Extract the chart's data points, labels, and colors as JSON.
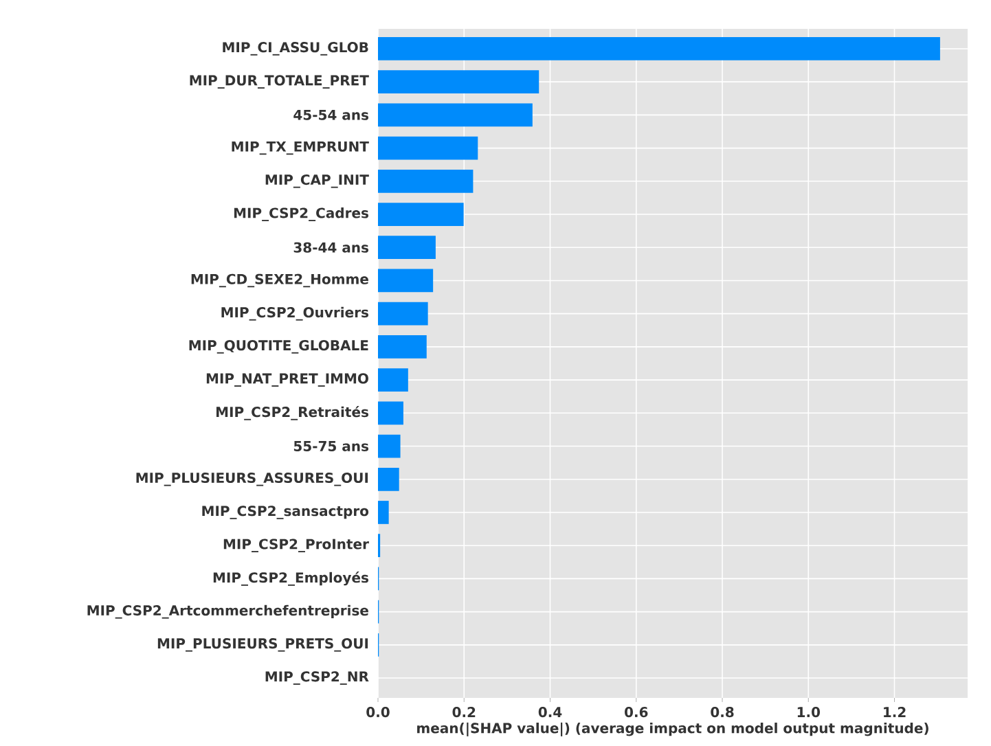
{
  "chart_data": {
    "type": "bar",
    "orientation": "horizontal",
    "xlabel": "mean(|SHAP value|) (average impact on model output magnitude)",
    "categories": [
      "MIP_CI_ASSU_GLOB",
      "MIP_DUR_TOTALE_PRET",
      "45-54 ans",
      "MIP_TX_EMPRUNT",
      "MIP_CAP_INIT",
      "MIP_CSP2_Cadres",
      "38-44 ans",
      "MIP_CD_SEXE2_Homme",
      "MIP_CSP2_Ouvriers",
      "MIP_QUOTITE_GLOBALE",
      "MIP_NAT_PRET_IMMO",
      "MIP_CSP2_Retraités",
      "55-75 ans",
      "MIP_PLUSIEURS_ASSURES_OUI",
      "MIP_CSP2_sansactpro",
      "MIP_CSP2_ProInter",
      "MIP_CSP2_Employés",
      "MIP_CSP2_Artcommerchefentreprise",
      "MIP_PLUSIEURS_PRETS_OUI",
      "MIP_CSP2_NR"
    ],
    "values": [
      1.306,
      0.374,
      0.359,
      0.232,
      0.221,
      0.199,
      0.134,
      0.128,
      0.116,
      0.113,
      0.07,
      0.059,
      0.052,
      0.049,
      0.025,
      0.005,
      0.002,
      0.002,
      0.002,
      0.0
    ],
    "color": "#008bfb",
    "xlim": [
      0,
      1.37
    ],
    "xticks": [
      {
        "value": 0,
        "label": "0.0"
      },
      {
        "value": 0.2,
        "label": "0.2"
      },
      {
        "value": 0.4,
        "label": "0.4"
      },
      {
        "value": 0.6,
        "label": "0.6"
      },
      {
        "value": 0.8,
        "label": "0.8"
      },
      {
        "value": 1.0,
        "label": "1.0"
      },
      {
        "value": 1.2,
        "label": "1.2"
      }
    ],
    "grid": true
  }
}
